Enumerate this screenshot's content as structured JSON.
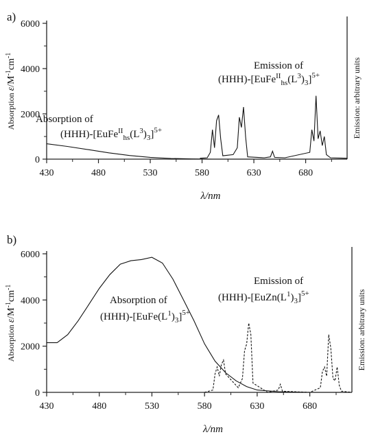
{
  "chart_data": [
    {
      "panel_label": "a)",
      "type": "line",
      "x_ticks": [
        430,
        480,
        530,
        580,
        630,
        680
      ],
      "xlim": [
        430,
        720
      ],
      "y_ticks": [
        0,
        2000,
        4000,
        6000
      ],
      "ylim": [
        0,
        6000
      ],
      "xlabel_sym": "λ",
      "xlabel_unit": "/nm",
      "ylabel_word": "Absorption",
      "ylabel_sym": "ε",
      "ylabel_unit": "/M",
      "ylabel_exp1": "-1",
      "ylabel_mid": "cm",
      "ylabel_exp2": "-1",
      "right_axis_label": "Emission: arbitrary units",
      "annotations": {
        "absorption_line1": "Absorption of",
        "absorption_line2": {
          "pre": "(HHH)-[EuFe",
          "sup1": "II",
          "sub1": "hs",
          "mid": "(L",
          "sup2": "3",
          "post": ")",
          "sub2": "3",
          "end": "]",
          "charge": "5+"
        },
        "emission_line1": "Emission of",
        "emission_line2": {
          "pre": "(HHH)-[EuFe",
          "sup1": "II",
          "sub1": "hs",
          "mid": "(L",
          "sup2": "3",
          "post": ")",
          "sub2": "3",
          "end": "]",
          "charge": "5+"
        }
      },
      "series": [
        {
          "style": "solid",
          "x": [
            430,
            450,
            470,
            490,
            510,
            530,
            550,
            570,
            590,
            600,
            720
          ],
          "y": [
            680,
            560,
            420,
            280,
            160,
            80,
            30,
            10,
            0,
            0,
            0
          ]
        },
        {
          "style": "solid",
          "x": [
            578,
            585,
            588,
            590,
            592,
            594,
            596,
            598,
            600,
            610,
            614,
            616,
            618,
            620,
            622,
            624,
            640,
            646,
            648,
            650,
            660,
            684,
            686,
            688,
            690,
            692,
            694,
            696,
            698,
            700,
            704,
            720
          ],
          "y": [
            40,
            60,
            300,
            1300,
            500,
            1700,
            1950,
            900,
            150,
            200,
            500,
            1850,
            1400,
            2300,
            1000,
            100,
            60,
            100,
            350,
            80,
            60,
            300,
            1300,
            800,
            2800,
            900,
            1250,
            600,
            1000,
            200,
            60,
            40
          ]
        }
      ]
    },
    {
      "panel_label": "b)",
      "type": "line",
      "x_ticks": [
        430,
        480,
        530,
        580,
        630,
        680
      ],
      "xlim": [
        430,
        720
      ],
      "y_ticks": [
        0,
        2000,
        4000,
        6000
      ],
      "ylim": [
        0,
        6000
      ],
      "xlabel_sym": "λ",
      "xlabel_unit": "/nm",
      "ylabel_word": "Absorption",
      "ylabel_sym": "ε",
      "ylabel_unit": "/M",
      "ylabel_exp1": "-1",
      "ylabel_mid": "cm",
      "ylabel_exp2": "-1",
      "right_axis_label": "Emission: arbitrary units",
      "annotations": {
        "absorption_line1": "Absorption of",
        "absorption_line2": {
          "pre": "(HHH)-[EuFe(L",
          "sup2": "1",
          "post": ")",
          "sub2": "3",
          "end": "]",
          "charge": "5+"
        },
        "emission_line1": "Emission of",
        "emission_line2": {
          "pre": "(HHH)-[EuZn(L",
          "sup2": "1",
          "post": ")",
          "sub2": "3",
          "end": "]",
          "charge": "5+"
        }
      },
      "series": [
        {
          "style": "solid",
          "x": [
            430,
            440,
            450,
            460,
            470,
            480,
            490,
            500,
            510,
            520,
            530,
            540,
            550,
            560,
            570,
            580,
            590,
            600,
            610,
            620,
            630,
            650,
            680,
            720
          ],
          "y": [
            2150,
            2150,
            2500,
            3100,
            3800,
            4500,
            5100,
            5550,
            5700,
            5750,
            5850,
            5600,
            4900,
            4000,
            3100,
            2100,
            1350,
            850,
            500,
            250,
            100,
            30,
            0,
            0
          ]
        },
        {
          "style": "dashed",
          "x": [
            580,
            588,
            590,
            592,
            594,
            596,
            598,
            600,
            612,
            616,
            618,
            620,
            622,
            624,
            626,
            640,
            650,
            652,
            654,
            680,
            690,
            692,
            694,
            696,
            698,
            700,
            702,
            704,
            706,
            708,
            710,
            720
          ],
          "y": [
            0,
            100,
            800,
            1100,
            700,
            1200,
            1400,
            800,
            200,
            600,
            1800,
            2100,
            3000,
            2500,
            400,
            0,
            100,
            350,
            50,
            0,
            200,
            900,
            1100,
            700,
            2500,
            1900,
            600,
            500,
            1100,
            300,
            50,
            0
          ]
        }
      ]
    }
  ]
}
